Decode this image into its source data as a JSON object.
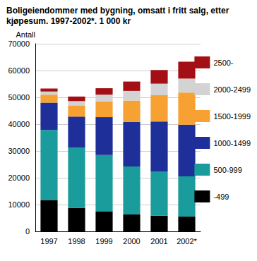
{
  "chart_data": {
    "type": "bar",
    "title": "Boligeiendommer med bygning, omsatt i fritt salg, etter kjøpesum. 1997-2002*. 1 000 kr",
    "y_label": "Antall",
    "categories": [
      "1997",
      "1998",
      "1999",
      "2000",
      "2001",
      "2002*"
    ],
    "stacked": true,
    "legend": "right",
    "grid": true,
    "ylim": [
      0,
      70000
    ],
    "yticks": [
      0,
      10000,
      20000,
      30000,
      40000,
      50000,
      60000,
      70000
    ],
    "series": [
      {
        "name": "-499",
        "color": "#000000",
        "values": [
          11700,
          8800,
          7400,
          6300,
          5900,
          5500
        ]
      },
      {
        "name": "500-999",
        "color": "#1b9c9c",
        "values": [
          26100,
          22400,
          21100,
          17900,
          16500,
          15000
        ]
      },
      {
        "name": "1000-1499",
        "color": "#1e2f9a",
        "values": [
          10200,
          11600,
          14100,
          16600,
          18600,
          19300
        ]
      },
      {
        "name": "1500-1999",
        "color": "#f7a133",
        "values": [
          3000,
          4200,
          5900,
          8000,
          9800,
          12000
        ]
      },
      {
        "name": "2000-2499",
        "color": "#d3d3d3",
        "values": [
          1200,
          1600,
          2500,
          3600,
          4300,
          5200
        ]
      },
      {
        "name": "2500-",
        "color": "#a30f14",
        "values": [
          1100,
          1700,
          2400,
          3500,
          5100,
          6300
        ]
      }
    ]
  }
}
